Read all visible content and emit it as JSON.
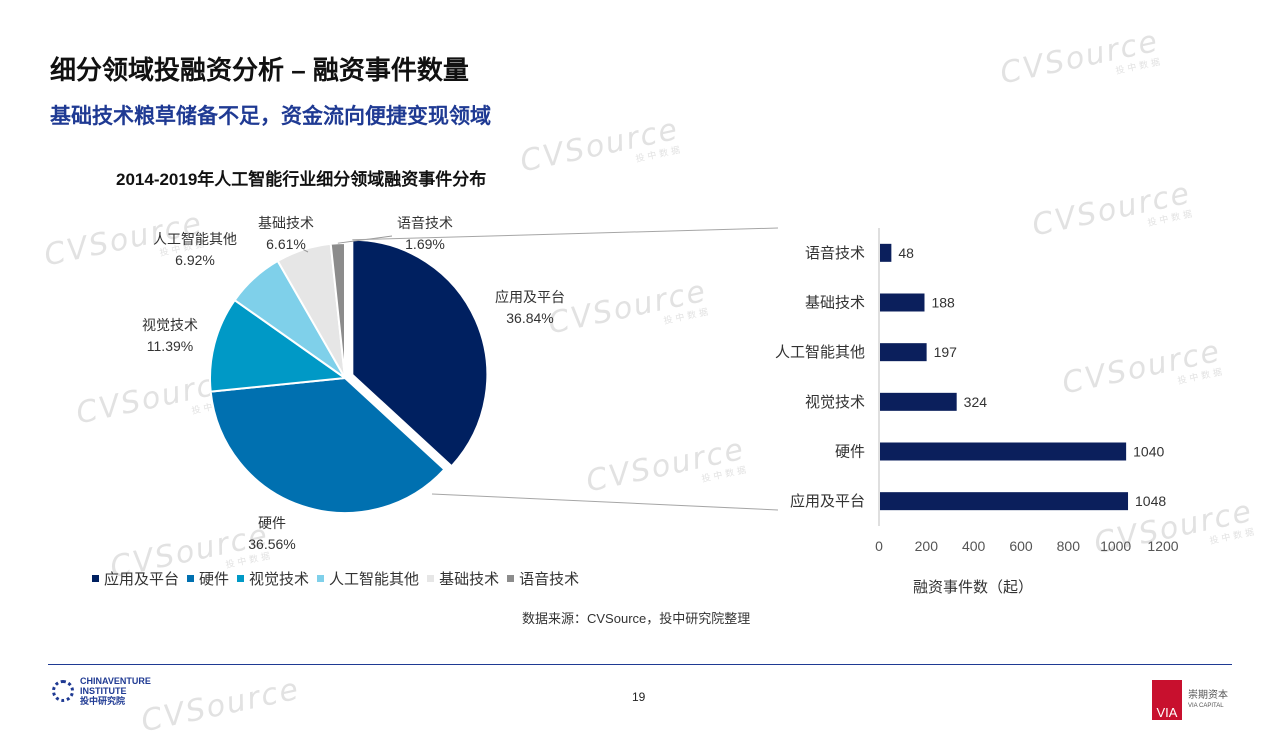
{
  "header": {
    "title": "细分领域投融资分析 – 融资事件数量",
    "subtitle": "基础技术粮草储备不足，资金流向便捷变现领域"
  },
  "watermark": {
    "brand": "CVSource",
    "sub": "投中数据"
  },
  "chart_data": [
    {
      "type": "pie",
      "title": "2014-2019年人工智能行业细分领域融资事件分布",
      "slices": [
        {
          "label": "应用及平台",
          "value": 36.84,
          "display": "36.84%",
          "color": "#002060",
          "exploded": true
        },
        {
          "label": "硬件",
          "value": 36.56,
          "display": "36.56%",
          "color": "#0070b0"
        },
        {
          "label": "视觉技术",
          "value": 11.39,
          "display": "11.39%",
          "color": "#0099c6"
        },
        {
          "label": "人工智能其他",
          "value": 6.92,
          "display": "6.92%",
          "color": "#7fd0ea"
        },
        {
          "label": "基础技术",
          "value": 6.61,
          "display": "6.61%",
          "color": "#e6e6e6"
        },
        {
          "label": "语音技术",
          "value": 1.69,
          "display": "1.69%",
          "color": "#8c8c8c"
        }
      ],
      "legend": [
        "应用及平台",
        "硬件",
        "视觉技术",
        "人工智能其他",
        "基础技术",
        "语音技术"
      ]
    },
    {
      "type": "bar",
      "orientation": "horizontal",
      "categories": [
        "语音技术",
        "基础技术",
        "人工智能其他",
        "视觉技术",
        "硬件",
        "应用及平台"
      ],
      "values": [
        48,
        188,
        197,
        324,
        1040,
        1048
      ],
      "xlim": [
        0,
        1200
      ],
      "xticks": [
        "0",
        "200",
        "400",
        "600",
        "800",
        "1000",
        "1200"
      ],
      "xlabel": "融资事件数（起）",
      "color": "#0b1f5c"
    }
  ],
  "footer": {
    "source": "数据来源：CVSource，投中研究院整理",
    "logo_line1": "CHINAVENTURE",
    "logo_line2": "INSTITUTE",
    "logo_line3": "投中研究院",
    "page": "19",
    "via_mark": "VIA",
    "via_name": "崇期资本",
    "via_en": "VIA CAPITAL"
  }
}
